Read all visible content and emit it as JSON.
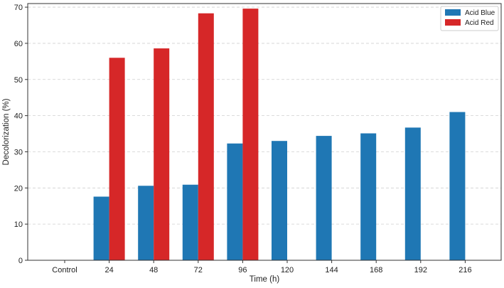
{
  "chart_data": {
    "type": "bar",
    "title": "",
    "xlabel": "Time (h)",
    "ylabel": "Decolorization (%)",
    "categories": [
      "Control",
      "24",
      "48",
      "72",
      "96",
      "120",
      "144",
      "168",
      "192",
      "216"
    ],
    "series": [
      {
        "name": "Acid Blue",
        "color": "#1f77b4",
        "values": [
          0,
          17.6,
          20.6,
          20.9,
          32.3,
          33.0,
          34.4,
          35.1,
          36.7,
          41.0
        ]
      },
      {
        "name": "Acid Red",
        "color": "#d62728",
        "values": [
          0,
          56.0,
          58.6,
          68.3,
          69.6,
          null,
          null,
          null,
          null,
          null
        ]
      }
    ],
    "ylim": [
      0,
      71
    ],
    "yticks": [
      "0",
      "10",
      "20",
      "30",
      "40",
      "50",
      "60",
      "70"
    ],
    "grid": true,
    "legend_position": "top-right"
  }
}
